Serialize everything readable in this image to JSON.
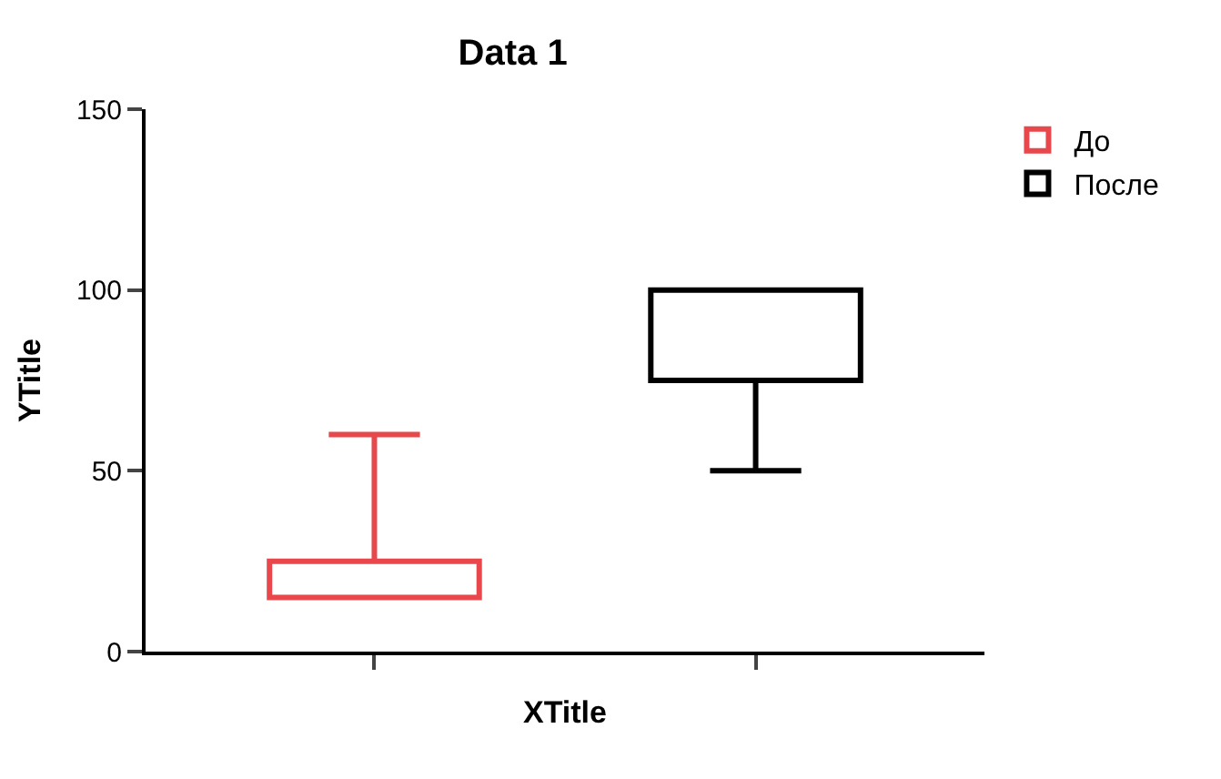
{
  "chart_data": {
    "type": "box",
    "title": "Data 1",
    "xlabel": "XTitle",
    "ylabel": "YTitle",
    "categories": [
      null,
      null
    ],
    "series": [
      {
        "name": "До",
        "color": "#e8474c",
        "boxes": [
          {
            "low": 15,
            "q1": 15,
            "q3": 25,
            "high": 60
          },
          null
        ]
      },
      {
        "name": "После",
        "color": "#000000",
        "boxes": [
          null,
          {
            "low": 50,
            "q1": 75,
            "q3": 100,
            "high": 100
          }
        ]
      }
    ],
    "ylim": [
      0,
      150
    ],
    "yticks": [
      0,
      50,
      100,
      150
    ],
    "legend": "top right"
  }
}
